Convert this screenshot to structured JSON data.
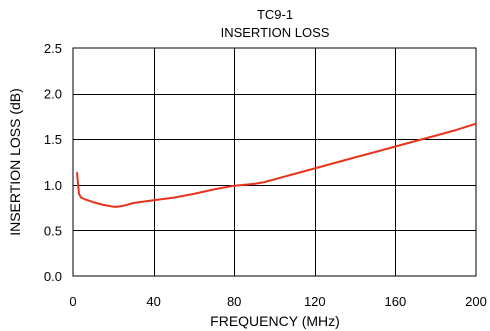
{
  "chart_data": {
    "type": "line",
    "title": "TC9-1",
    "subtitle": "INSERTION LOSS",
    "xlabel": "FREQUENCY (MHz)",
    "ylabel": "INSERTION LOSS (dB)",
    "xlim": [
      0,
      200
    ],
    "ylim": [
      0,
      2.5
    ],
    "xticks": [
      0,
      40,
      80,
      120,
      160,
      200
    ],
    "yticks": [
      0.0,
      0.5,
      1.0,
      1.5,
      2.0,
      2.5
    ],
    "xtick_labels": [
      "0",
      "40",
      "80",
      "120",
      "160",
      "200"
    ],
    "ytick_labels": [
      "0.0",
      "0.5",
      "1.0",
      "1.5",
      "2.0",
      "2.5"
    ],
    "grid": true,
    "legend": "none",
    "series": [
      {
        "color": "#e8341c",
        "x": [
          2,
          3,
          4,
          6,
          10,
          15,
          20,
          22,
          25,
          30,
          40,
          50,
          60,
          70,
          80,
          90,
          95,
          100,
          110,
          120,
          130,
          140,
          150,
          160,
          170,
          180,
          190,
          200
        ],
        "y": [
          1.13,
          0.9,
          0.86,
          0.84,
          0.81,
          0.78,
          0.76,
          0.76,
          0.77,
          0.8,
          0.83,
          0.86,
          0.9,
          0.95,
          0.99,
          1.01,
          1.03,
          1.06,
          1.12,
          1.18,
          1.24,
          1.3,
          1.36,
          1.42,
          1.48,
          1.54,
          1.6,
          1.67
        ]
      }
    ]
  }
}
